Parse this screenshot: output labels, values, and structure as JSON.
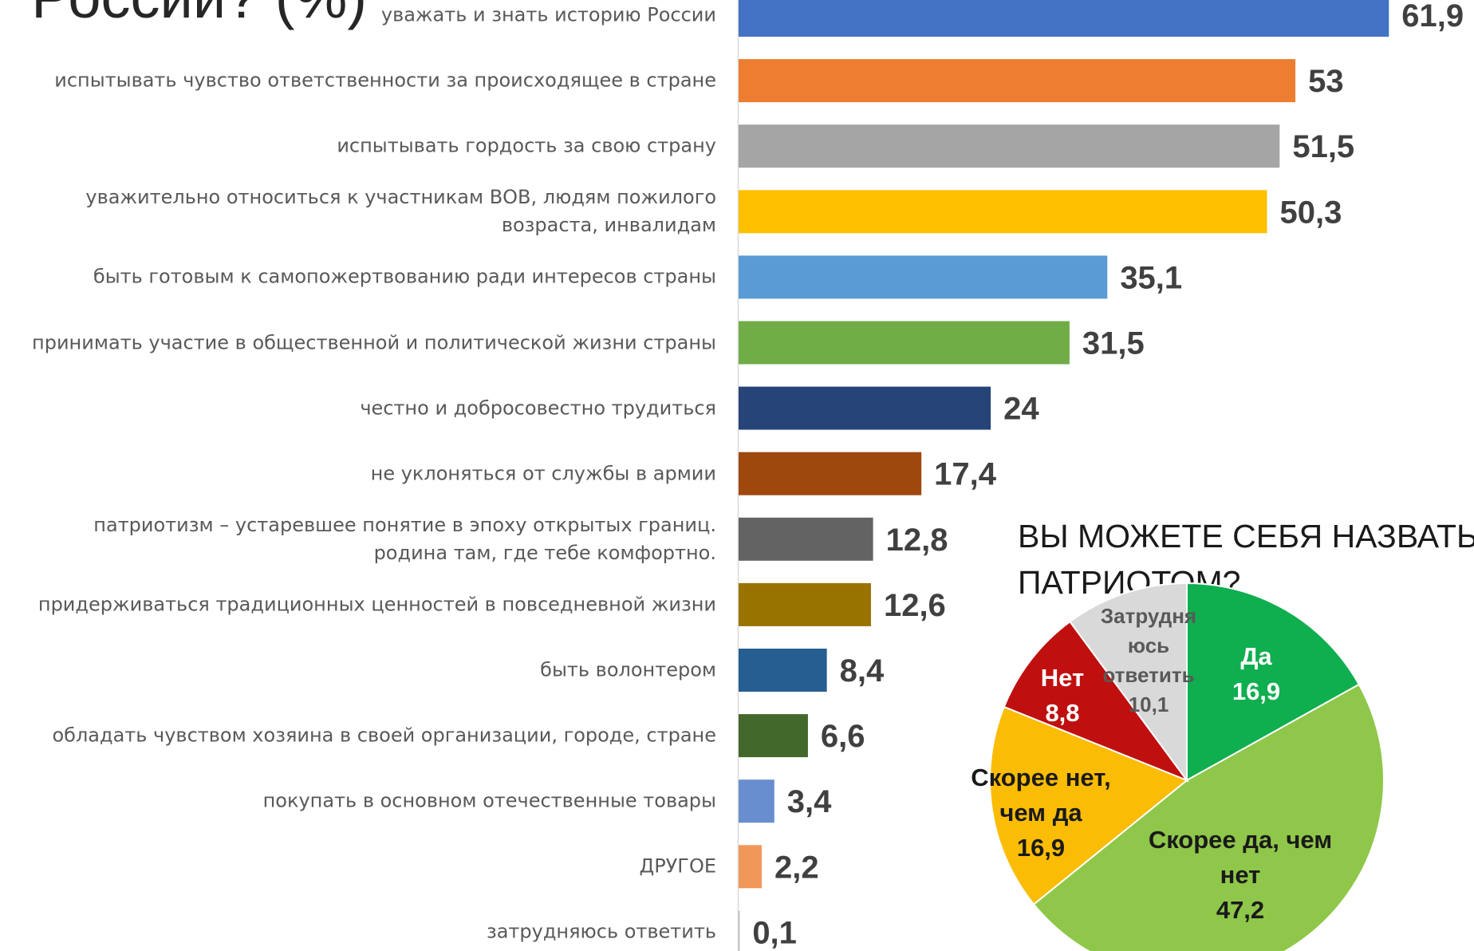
{
  "chart_data": [
    {
      "type": "bar",
      "title": "России? (%)",
      "categories": [
        "уважать и знать историю России",
        "испытывать чувство ответственности за происходящее в стране",
        "испытывать гордость за свою страну",
        "уважительно относиться к участникам ВОВ, людям пожилого возраста, инвалидам",
        "быть готовым к самопожертвованию ради интересов страны",
        "принимать участие в общественной и политической жизни страны",
        "честно и добросовестно трудиться",
        "не уклоняться от службы в армии",
        "патриотизм – устаревшее понятие в эпоху открытых границ. родина там, где тебе комфортно.",
        "придерживаться традиционных ценностей в повседневной жизни",
        "быть волонтером",
        "обладать чувством хозяина в своей организации, городе, стране",
        "покупать в основном отечественные товары",
        "ДРУГОЕ",
        "затрудняюсь ответить"
      ],
      "values": [
        61.9,
        53,
        51.5,
        50.3,
        35.1,
        31.5,
        24,
        17.4,
        12.8,
        12.6,
        8.4,
        6.6,
        3.4,
        2.2,
        0.1
      ],
      "value_labels": [
        "61,9",
        "53",
        "51,5",
        "50,3",
        "35,1",
        "31,5",
        "24",
        "17,4",
        "12,8",
        "12,6",
        "8,4",
        "6,6",
        "3,4",
        "2,2",
        "0,1"
      ],
      "colors": [
        "#4472c4",
        "#ed7d31",
        "#a5a5a5",
        "#ffc000",
        "#5b9bd5",
        "#70ad47",
        "#264478",
        "#9e480e",
        "#636363",
        "#997300",
        "#255e91",
        "#43682b",
        "#698ed0",
        "#f1975a",
        "#b7b7b7"
      ],
      "xlim": [
        0,
        70
      ]
    },
    {
      "type": "pie",
      "title": "ВЫ МОЖЕТЕ СЕБЯ НАЗВАТЬ ПАТРИОТОМ?",
      "categories": [
        "Да",
        "Скорее да, чем нет",
        "Скорее нет, чем да",
        "Нет",
        "Затрудняюсь ответить"
      ],
      "values": [
        16.9,
        47.2,
        16.9,
        8.8,
        10.1
      ],
      "value_labels": [
        "16,9",
        "47,2",
        "16,9",
        "8,8",
        "10,1"
      ],
      "colors": [
        "#0fae4f",
        "#8fc74a",
        "#fbbc05",
        "#c00f0f",
        "#d9d9d9"
      ]
    }
  ]
}
